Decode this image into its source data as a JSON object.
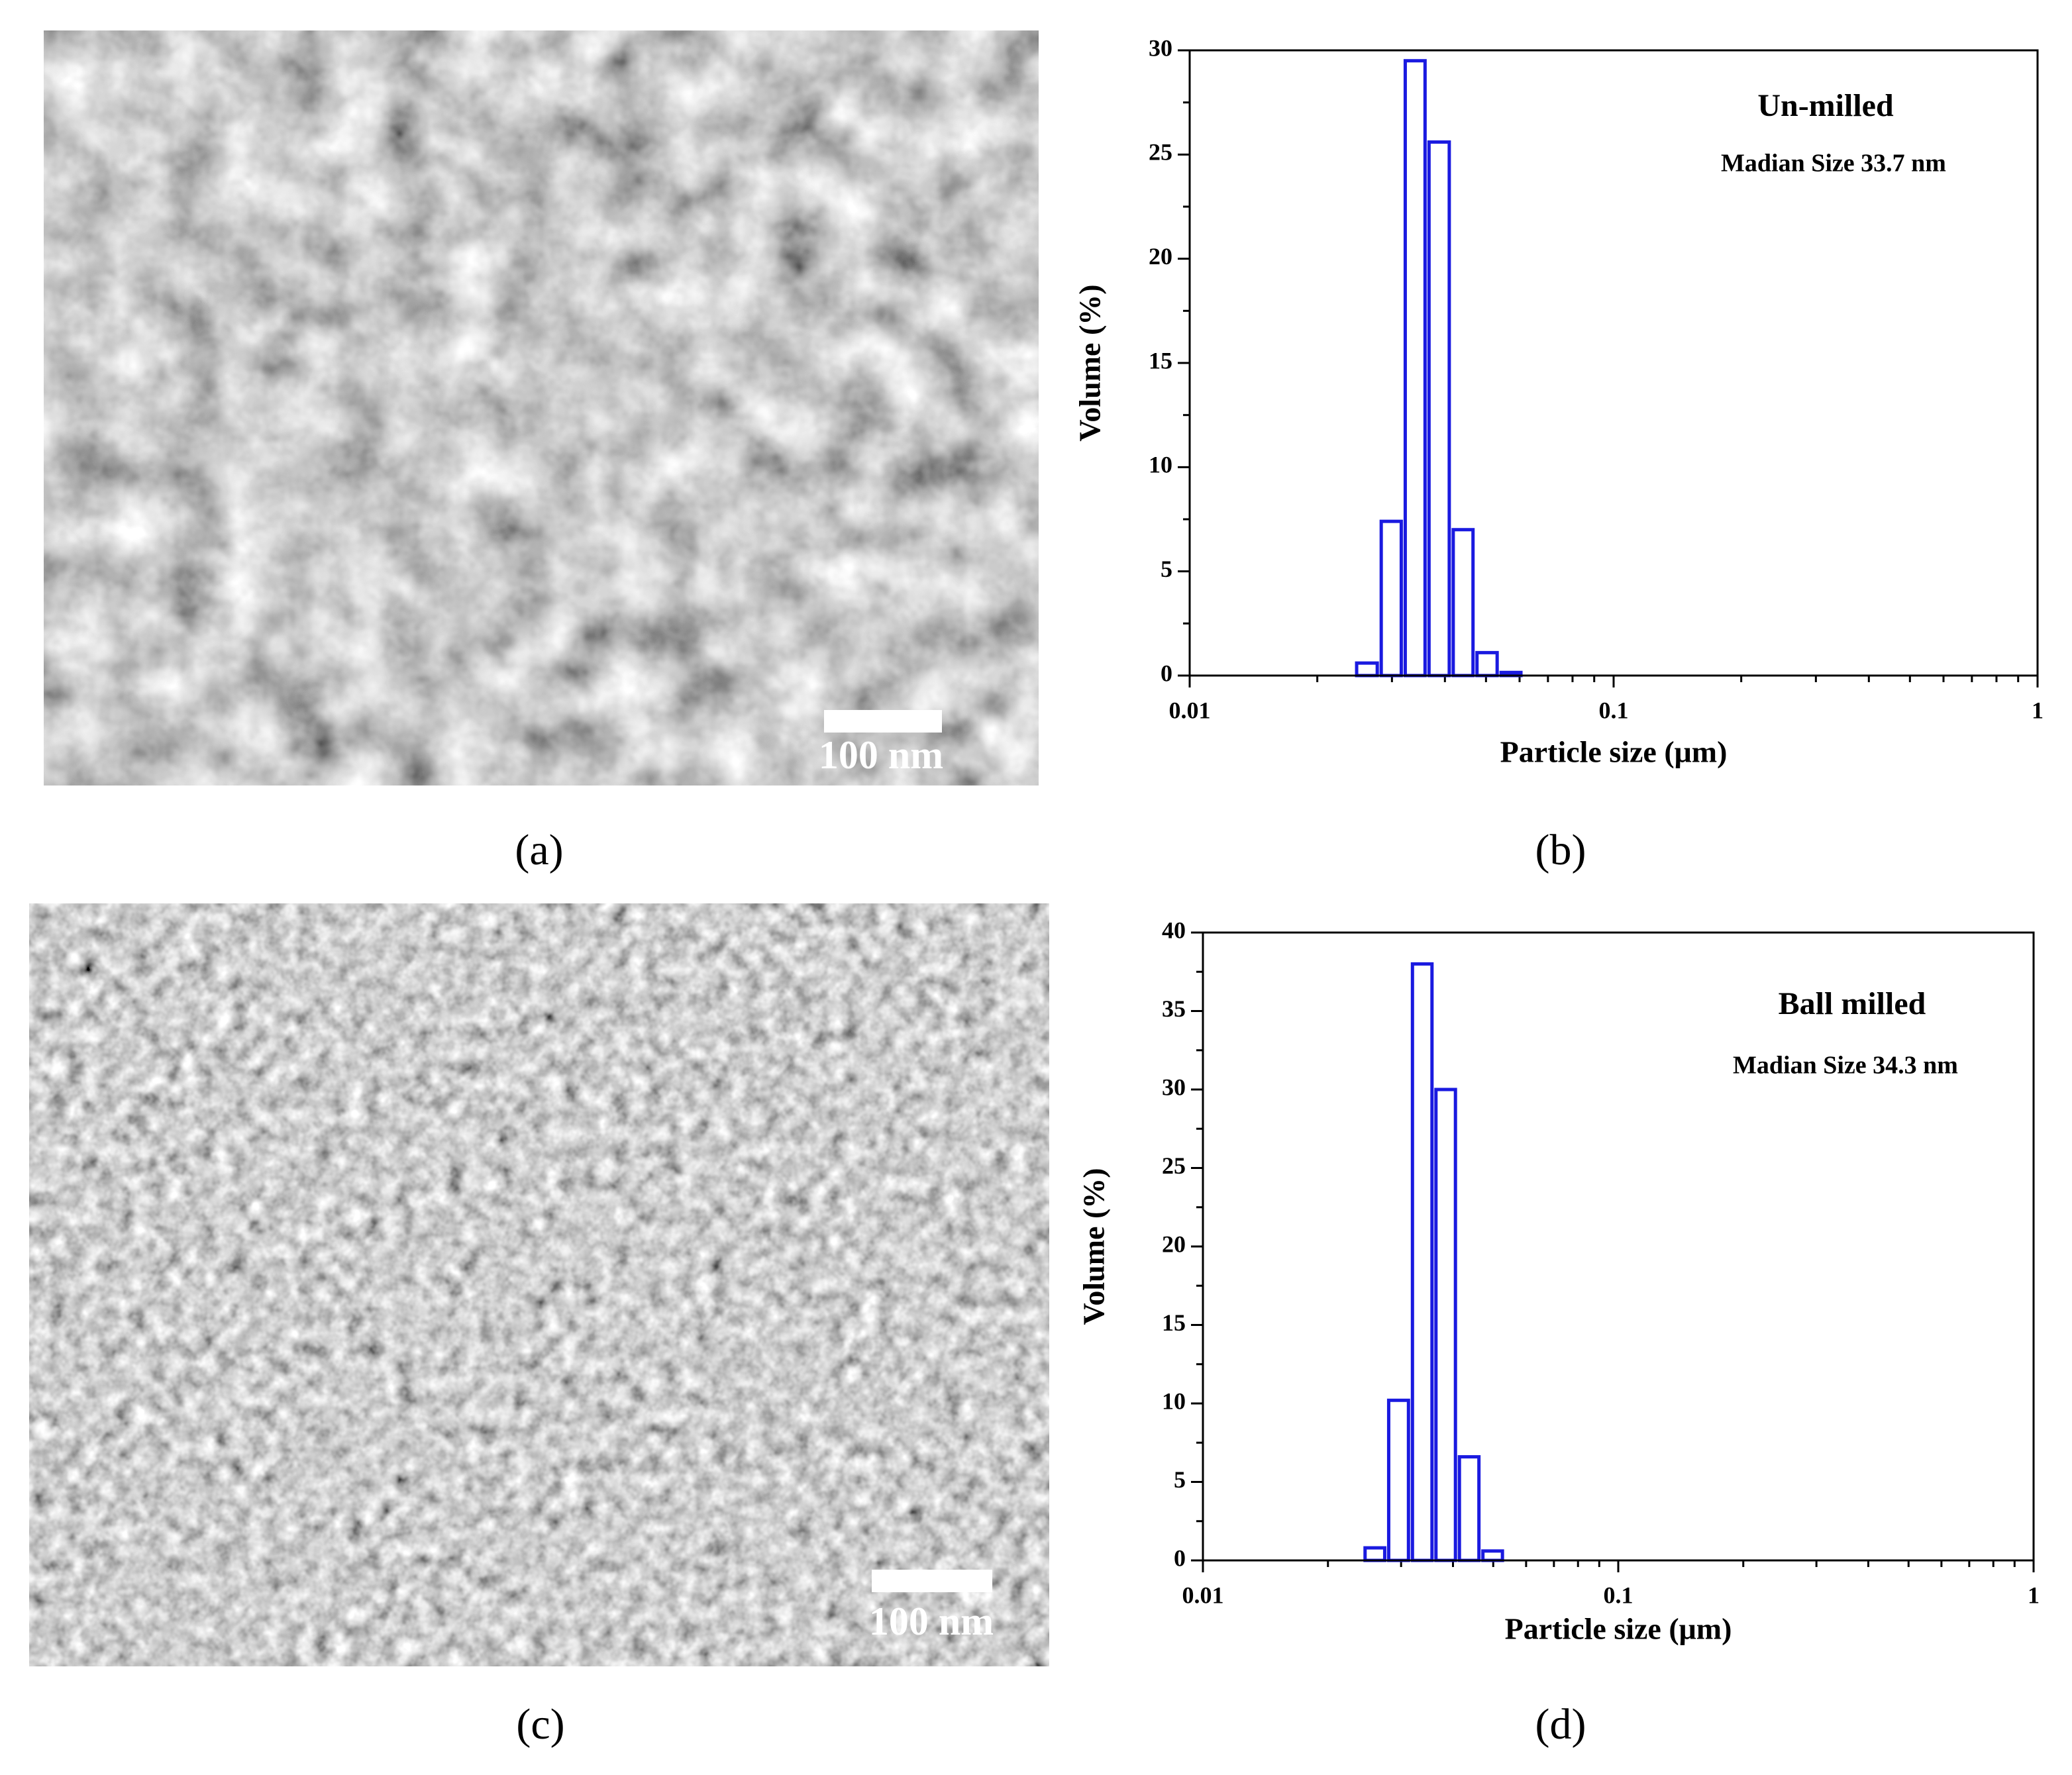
{
  "figure": {
    "panel_labels": [
      "(a)",
      "(b)",
      "(c)",
      "(d)"
    ],
    "scale_bars": [
      "100 nm",
      "100 nm"
    ]
  },
  "chart_data": [
    {
      "type": "histogram",
      "xlabel": "Particle size (μm)",
      "ylabel": "Volume (%)",
      "annotations": [
        "Un-milled",
        "Madian Size 33.7 nm"
      ],
      "bins": [
        0.0245,
        0.028,
        0.0319,
        0.0363,
        0.0414,
        0.0471,
        0.0537,
        0.0611
      ],
      "values": [
        0.6,
        7.4,
        29.5,
        25.6,
        7.0,
        1.1,
        0.15
      ],
      "color": "#1a1ae0",
      "xscale": "log",
      "xlim": [
        0.01,
        1
      ],
      "xticks": [
        0.01,
        0.1,
        1
      ],
      "ylim": [
        0,
        30
      ],
      "yticks": [
        0,
        5,
        10,
        15,
        20,
        25,
        30
      ]
    },
    {
      "type": "histogram",
      "xlabel": "Particle size (μm)",
      "ylabel": "Volume (%)",
      "annotations": [
        "Ball milled",
        "Madian Size 34.3 nm"
      ],
      "bins": [
        0.0243,
        0.0277,
        0.0316,
        0.036,
        0.041,
        0.0467,
        0.0532
      ],
      "values": [
        0.8,
        10.2,
        38,
        30,
        6.6,
        0.6
      ],
      "color": "#1a1ae0",
      "xscale": "log",
      "xlim": [
        0.01,
        1
      ],
      "xticks": [
        0.01,
        0.1,
        1
      ],
      "ylim": [
        0,
        40
      ],
      "yticks": [
        0,
        5,
        10,
        15,
        20,
        25,
        30,
        35,
        40
      ]
    }
  ]
}
